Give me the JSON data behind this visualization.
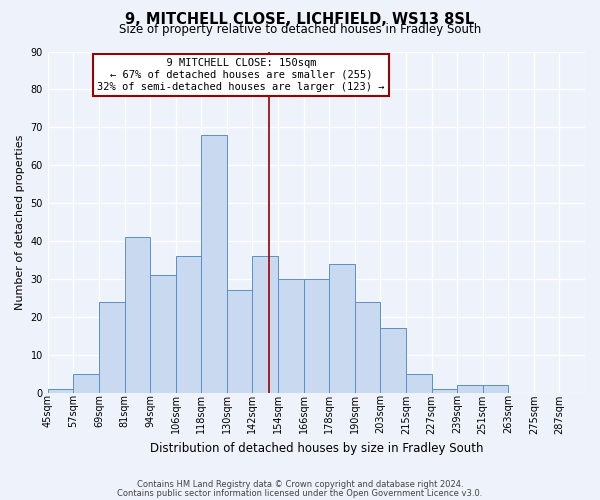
{
  "title": "9, MITCHELL CLOSE, LICHFIELD, WS13 8SL",
  "subtitle": "Size of property relative to detached houses in Fradley South",
  "xlabel": "Distribution of detached houses by size in Fradley South",
  "ylabel": "Number of detached properties",
  "bin_labels": [
    "45sqm",
    "57sqm",
    "69sqm",
    "81sqm",
    "94sqm",
    "106sqm",
    "118sqm",
    "130sqm",
    "142sqm",
    "154sqm",
    "166sqm",
    "178sqm",
    "190sqm",
    "203sqm",
    "215sqm",
    "227sqm",
    "239sqm",
    "251sqm",
    "263sqm",
    "275sqm",
    "287sqm"
  ],
  "bar_values": [
    1,
    5,
    24,
    41,
    31,
    36,
    68,
    27,
    36,
    30,
    30,
    34,
    24,
    17,
    5,
    1,
    2,
    2,
    0,
    0,
    0
  ],
  "bar_color": "#c9d9ef",
  "bar_edge_color": "#5b8fc9",
  "ylim": [
    0,
    90
  ],
  "yticks": [
    0,
    10,
    20,
    30,
    40,
    50,
    60,
    70,
    80,
    90
  ],
  "bin_starts": [
    45,
    57,
    69,
    81,
    94,
    106,
    118,
    130,
    142,
    154,
    166,
    178,
    190,
    203,
    215,
    227,
    239,
    251,
    263,
    275,
    287
  ],
  "property_sqm": 150,
  "property_line_color": "#990000",
  "annotation_title": "9 MITCHELL CLOSE: 150sqm",
  "annotation_line1": "← 67% of detached houses are smaller (255)",
  "annotation_line2": "32% of semi-detached houses are larger (123) →",
  "annotation_box_color": "#ffffff",
  "annotation_box_edge": "#990000",
  "footnote1": "Contains HM Land Registry data © Crown copyright and database right 2024.",
  "footnote2": "Contains public sector information licensed under the Open Government Licence v3.0.",
  "background_color": "#edf2fb",
  "grid_color": "#ffffff",
  "title_fontsize": 10.5,
  "subtitle_fontsize": 8.5,
  "ylabel_fontsize": 8,
  "xlabel_fontsize": 8.5,
  "tick_fontsize": 7,
  "annotation_fontsize": 7.5,
  "footnote_fontsize": 6
}
